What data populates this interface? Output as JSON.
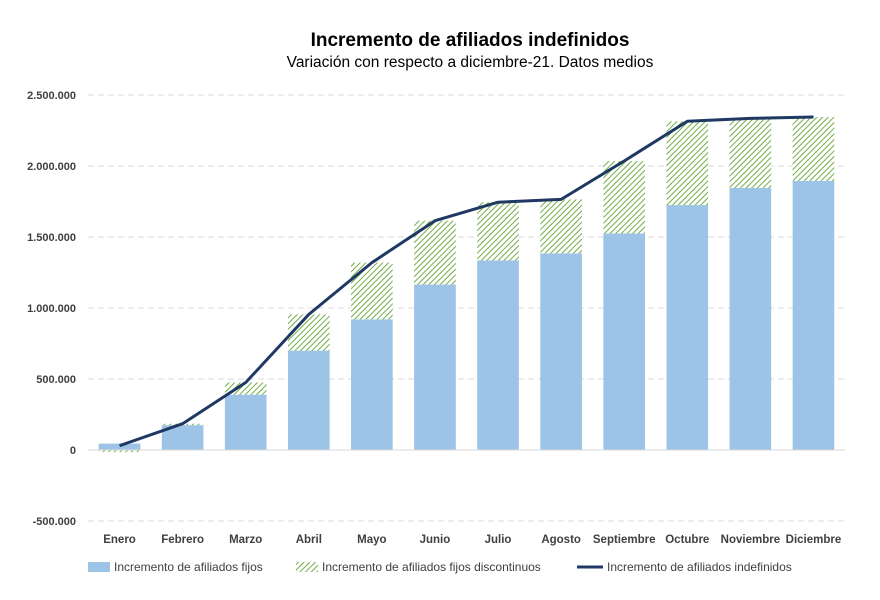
{
  "colors": {
    "fijos": "#9dc3e6",
    "hatch_stroke": "#70ad47",
    "line": "#1f3864",
    "grid": "#d9d9d9",
    "text": "#404040"
  },
  "chart_data": {
    "type": "bar",
    "title": "Incremento de afiliados indefinidos",
    "subtitle": "Variación con respecto a diciembre-21. Datos medios",
    "xlabel": "",
    "ylabel": "",
    "ylim": [
      -500000,
      2500000
    ],
    "y_ticks": [
      -500000,
      0,
      500000,
      1000000,
      1500000,
      2000000,
      2500000
    ],
    "y_tick_labels": [
      "-500.000",
      "0",
      "500.000",
      "1.000.000",
      "1.500.000",
      "2.000.000",
      "2.500.000"
    ],
    "grid": true,
    "legend_position": "bottom",
    "categories": [
      "Enero",
      "Febrero",
      "Marzo",
      "Abril",
      "Mayo",
      "Junio",
      "Julio",
      "Agosto",
      "Septiembre",
      "Octubre",
      "Noviembre",
      "Diciembre"
    ],
    "series": [
      {
        "name": "Incremento de afiliados fijos",
        "kind": "bar",
        "stack": "main",
        "values": [
          45000,
          175000,
          390000,
          700000,
          920000,
          1165000,
          1335000,
          1385000,
          1525000,
          1725000,
          1845000,
          1895000
        ]
      },
      {
        "name": "Incremento de afiliados fijos discontinuos",
        "kind": "bar",
        "stack": "main",
        "pattern": "hatch",
        "values": [
          -15000,
          10000,
          85000,
          255000,
          400000,
          450000,
          410000,
          380000,
          510000,
          590000,
          490000,
          450000
        ]
      },
      {
        "name": "Incremento de afiliados indefinidos",
        "kind": "line",
        "values": [
          30000,
          185000,
          475000,
          955000,
          1320000,
          1615000,
          1745000,
          1765000,
          2035000,
          2315000,
          2335000,
          2345000
        ]
      }
    ]
  }
}
